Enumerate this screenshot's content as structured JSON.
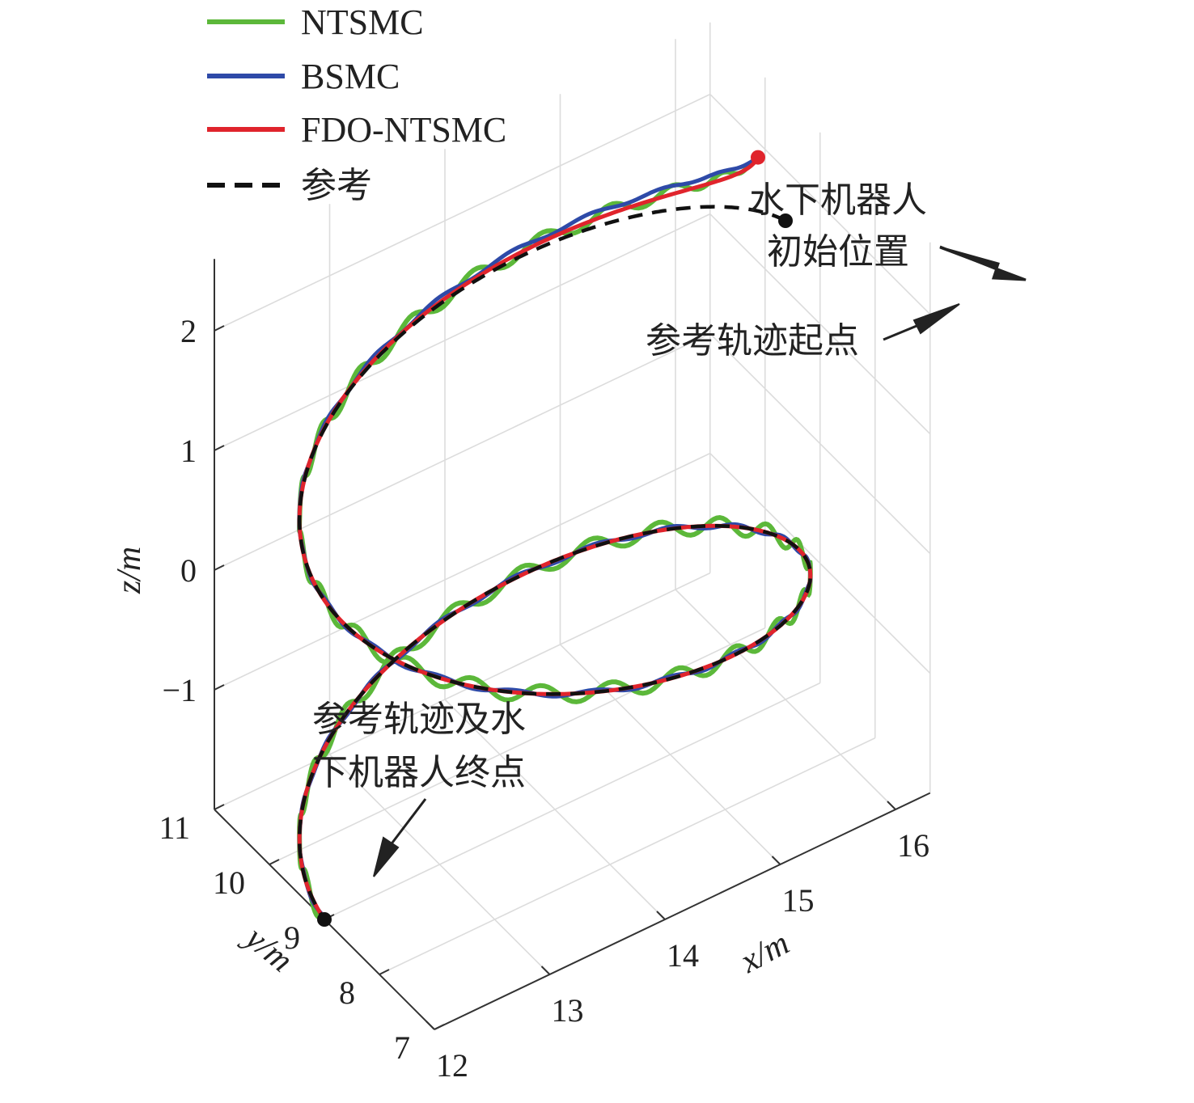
{
  "chart_data": {
    "type": "line3d",
    "xlabel": "x/m",
    "ylabel": "y/m",
    "zlabel": "z/m",
    "xticks": [
      "12",
      "13",
      "14",
      "15",
      "16"
    ],
    "yticks": [
      "7",
      "8",
      "9",
      "10",
      "11"
    ],
    "zticks": [
      "−1",
      "0",
      "1",
      "2"
    ],
    "xlim": [
      12,
      16.3
    ],
    "ylim": [
      7,
      11
    ],
    "zlim": [
      -2,
      2.6
    ],
    "grid": true,
    "legend_position": "top-left",
    "colors": {
      "NTSMC": "#5cb83a",
      "BSMC": "#2e4aa8",
      "FDO-NTSMC": "#e0242c",
      "ref": "#111111"
    },
    "series": [
      {
        "name": "NTSMC",
        "style": "solid"
      },
      {
        "name": "BSMC",
        "style": "solid"
      },
      {
        "name": "FDO-NTSMC",
        "style": "solid"
      },
      {
        "name": "参考",
        "style": "dashed"
      }
    ],
    "reference_path": {
      "description": "helix",
      "center": [
        14,
        9
      ],
      "radius": 2,
      "z_start": 2,
      "z_end": -2,
      "turns": 1.5
    },
    "robot_start": {
      "x": 16,
      "y": 9.5,
      "z": 2.3
    },
    "annotations": {
      "robot_start_line1": "水下机器人",
      "robot_start_line2": "初始位置",
      "ref_start": "参考轨迹起点",
      "end_line1": "参考轨迹及水",
      "end_line2": "下机器人终点"
    }
  }
}
